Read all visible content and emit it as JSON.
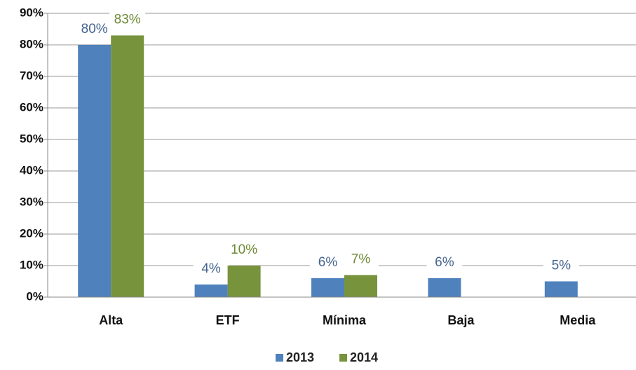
{
  "chart_data": {
    "type": "bar",
    "categories": [
      "Alta",
      "ETF",
      "Mínima",
      "Baja",
      "Media"
    ],
    "series": [
      {
        "name": "2013",
        "color": "#4f81bd",
        "label_color": "#44648f",
        "values": [
          80,
          4,
          6,
          6,
          5
        ],
        "value_labels": [
          "80%",
          "4%",
          "6%",
          "6%",
          "5%"
        ]
      },
      {
        "name": "2014",
        "color": "#77933c",
        "label_color": "#6d8a36",
        "values": [
          83,
          10,
          7,
          null,
          null
        ],
        "value_labels": [
          "83%",
          "10%",
          "7%",
          null,
          null
        ]
      }
    ],
    "ylim": [
      0,
      90
    ],
    "yticks": [
      {
        "value": 0,
        "label": "0%"
      },
      {
        "value": 10,
        "label": "10%"
      },
      {
        "value": 20,
        "label": "20%"
      },
      {
        "value": 30,
        "label": "30%"
      },
      {
        "value": 40,
        "label": "40%"
      },
      {
        "value": 50,
        "label": "50%"
      },
      {
        "value": 60,
        "label": "60%"
      },
      {
        "value": 70,
        "label": "70%"
      },
      {
        "value": 80,
        "label": "80%"
      },
      {
        "value": 90,
        "label": "90%"
      }
    ],
    "grid": true,
    "legend": "bottom"
  }
}
